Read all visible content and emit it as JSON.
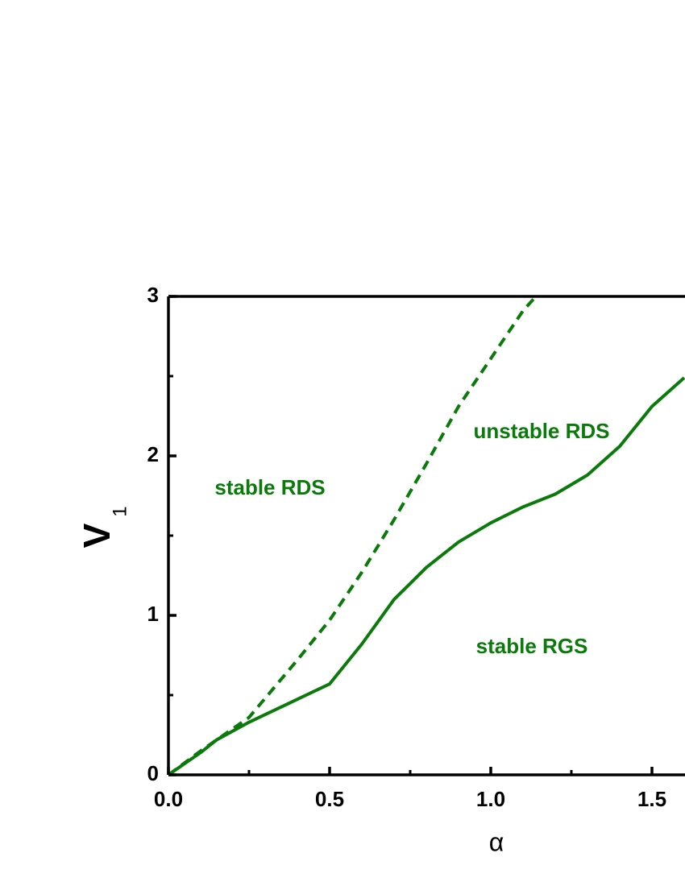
{
  "chart_data": {
    "type": "line",
    "x_label": "α",
    "y_label": "V",
    "y_label_sub": "1",
    "annotations": [
      "stable RDS",
      "unstable RDS",
      "stable RGS"
    ],
    "xlim": [
      0,
      1.6
    ],
    "ylim": [
      0,
      3
    ],
    "xticks": [
      {
        "value": 0,
        "label": "0.0"
      },
      0.5,
      {
        "value": 1,
        "label": "1.0"
      },
      1.5
    ],
    "yticks": [
      0,
      1,
      2,
      3
    ],
    "xminor": [
      0.25,
      0.75,
      1.25
    ],
    "yminor": [
      0.5,
      1.5,
      2.5
    ],
    "series": [
      {
        "color": "#0a7a0a",
        "dash": false,
        "x": [
          0,
          0.1,
          0.15,
          0.25,
          0.375,
          0.5,
          0.6,
          0.7,
          0.8,
          0.9,
          1.0,
          1.1,
          1.2,
          1.3,
          1.4,
          1.5,
          1.6
        ],
        "values": [
          0,
          0.14,
          0.22,
          0.33,
          0.45,
          0.57,
          0.82,
          1.1,
          1.3,
          1.46,
          1.58,
          1.68,
          1.76,
          1.88,
          2.06,
          2.31,
          2.49
        ]
      },
      {
        "color": "#0a7a0a",
        "dash": true,
        "x": [
          0,
          0.1,
          0.25,
          0.4,
          0.5,
          0.6,
          0.7,
          0.8,
          0.9,
          1.0,
          1.1,
          1.14
        ],
        "values": [
          0,
          0.15,
          0.36,
          0.72,
          0.97,
          1.27,
          1.6,
          1.95,
          2.31,
          2.61,
          2.91,
          3.0
        ]
      }
    ]
  }
}
